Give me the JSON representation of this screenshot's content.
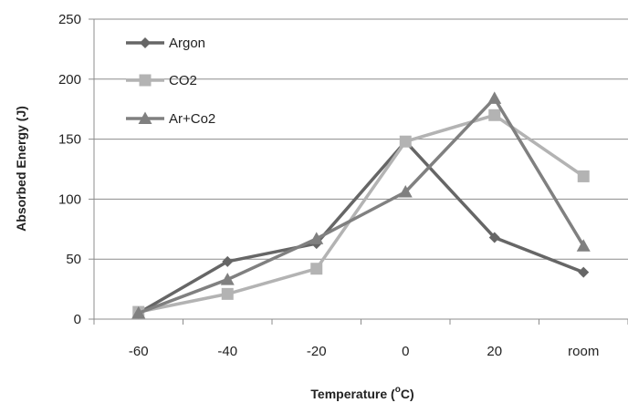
{
  "chart_data": {
    "type": "line",
    "categories": [
      "-60",
      "-40",
      "-20",
      "0",
      "20",
      "room"
    ],
    "ylim": [
      0,
      250
    ],
    "yticks": [
      0,
      50,
      100,
      150,
      200,
      250
    ],
    "ylabel": "Absorbed Energy (J)",
    "xlabel": {
      "prefix": "Temperature (",
      "sup": "o",
      "suffix": "C)"
    },
    "grid": "horizontal",
    "legend_position": "top-left",
    "series": [
      {
        "name": "Argon",
        "values": [
          5,
          48,
          63,
          148,
          68,
          39
        ],
        "marker": "diamond",
        "color": "#666666"
      },
      {
        "name": "CO2",
        "values": [
          6,
          21,
          42,
          148,
          170,
          119
        ],
        "marker": "square",
        "color": "#b3b3b3"
      },
      {
        "name": "Ar+Co2",
        "values": [
          5,
          33,
          67,
          106,
          184,
          61
        ],
        "marker": "triangle",
        "color": "#808080"
      }
    ]
  }
}
